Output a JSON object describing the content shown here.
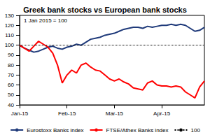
{
  "chart_data": {
    "type": "line",
    "title": "Greek bank stocks vs European bank stocks",
    "annotation": "1 Jan 2015 = 100",
    "categories": [
      "Jan-15",
      null,
      null,
      null,
      null,
      null,
      null,
      null,
      null,
      null,
      "Feb-15",
      null,
      null,
      null,
      null,
      null,
      null,
      null,
      null,
      null,
      "Mar-15",
      null,
      null,
      null,
      null,
      null,
      null,
      null,
      null,
      null,
      "Apr-15",
      null,
      null,
      null,
      null,
      null,
      null,
      null,
      null,
      null
    ],
    "series": [
      {
        "name": "Eurostoxx Banks index",
        "color": "#1f3a7a",
        "line_style": "solid",
        "values": [
          100,
          97,
          95,
          93,
          94,
          96,
          98,
          99,
          97,
          96,
          98,
          99,
          101,
          100,
          103,
          106,
          107,
          108,
          110,
          111,
          112,
          114,
          116,
          117,
          118,
          118,
          117,
          119,
          118,
          119,
          120,
          120,
          121,
          120,
          121,
          120,
          117,
          114,
          115,
          118
        ]
      },
      {
        "name": "FTSE/Athex Banks index",
        "color": "#ff0000",
        "line_style": "solid",
        "values": [
          100,
          97,
          94,
          99,
          104,
          101,
          98,
          92,
          80,
          62,
          70,
          75,
          72,
          80,
          82,
          78,
          75,
          74,
          70,
          66,
          64,
          66,
          63,
          61,
          57,
          56,
          55,
          62,
          64,
          60,
          59,
          59,
          58,
          59,
          58,
          53,
          50,
          47,
          58,
          64
        ]
      },
      {
        "name": "100",
        "color": "#000000",
        "line_style": "dotted",
        "values": [
          100,
          100,
          100,
          100,
          100,
          100,
          100,
          100,
          100,
          100,
          100,
          100,
          100,
          100,
          100,
          100,
          100,
          100,
          100,
          100,
          100,
          100,
          100,
          100,
          100,
          100,
          100,
          100,
          100,
          100,
          100,
          100,
          100,
          100,
          100,
          100,
          100,
          100,
          100,
          100
        ]
      }
    ],
    "ylim": [
      40,
      130
    ],
    "yticks": [
      40,
      50,
      60,
      70,
      80,
      90,
      100,
      110,
      120,
      130
    ],
    "grid": false,
    "legend": "bottom"
  }
}
